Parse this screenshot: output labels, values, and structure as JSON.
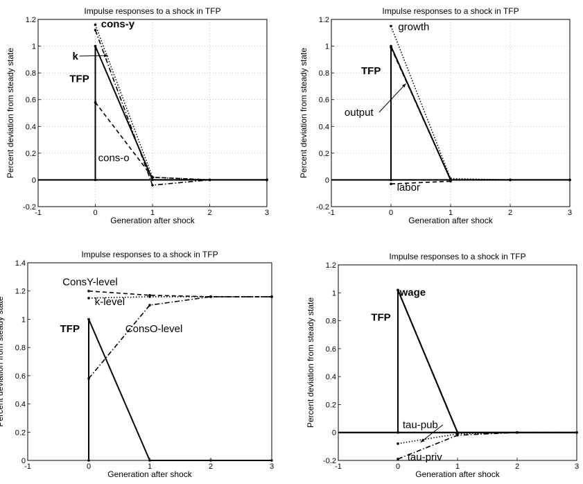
{
  "chart_data": [
    {
      "type": "line",
      "title": "Impulse responses to a shock in TFP",
      "xlabel": "Generation after shock",
      "ylabel": "Percent deviation from steady state",
      "xlim": [
        -1,
        3
      ],
      "ylim": [
        -0.2,
        1.2
      ],
      "xticks": [
        "-1",
        "0",
        "1",
        "2",
        "3"
      ],
      "yticks": [
        "-0.2",
        "0",
        "0.2",
        "0.4",
        "0.6",
        "0.8",
        "1",
        "1.2"
      ],
      "grid": true,
      "series": [
        {
          "name": "TFP",
          "style": "solid",
          "x": [
            0,
            0,
            1,
            2,
            3
          ],
          "y": [
            0,
            1,
            0,
            0,
            0
          ]
        },
        {
          "name": "cons-y",
          "style": "dotted",
          "x": [
            0,
            1,
            2,
            3
          ],
          "y": [
            1.16,
            0.02,
            0,
            0
          ]
        },
        {
          "name": "k",
          "style": "dashdot",
          "x": [
            0,
            1,
            2,
            3
          ],
          "y": [
            1.12,
            -0.04,
            0,
            0
          ]
        },
        {
          "name": "cons-o",
          "style": "dashed",
          "x": [
            0,
            1,
            2,
            3
          ],
          "y": [
            0.58,
            0.02,
            0,
            0
          ]
        }
      ],
      "annotations": [
        {
          "text": "cons-y",
          "x": 0.1,
          "y": 1.14,
          "bold": true
        },
        {
          "text": "k",
          "x": -0.4,
          "y": 0.9,
          "bold": true,
          "arrow_to": [
            0.22,
            0.93
          ]
        },
        {
          "text": "TFP",
          "x": -0.45,
          "y": 0.73,
          "bold": true
        },
        {
          "text": "cons-o",
          "x": 0.05,
          "y": 0.14,
          "bold": false
        }
      ]
    },
    {
      "type": "line",
      "title": "Impulse responses to a shock in TFP",
      "xlabel": "Generation after shock",
      "ylabel": "Percent deviation from steady state",
      "xlim": [
        -1,
        3
      ],
      "ylim": [
        -0.2,
        1.2
      ],
      "xticks": [
        "-1",
        "0",
        "1",
        "2",
        "3"
      ],
      "yticks": [
        "-0.2",
        "0",
        "0.2",
        "0.4",
        "0.6",
        "0.8",
        "1",
        "1.2"
      ],
      "grid": true,
      "series": [
        {
          "name": "TFP",
          "style": "solid",
          "x": [
            0,
            0,
            1,
            2,
            3
          ],
          "y": [
            0,
            1,
            0,
            0,
            0
          ]
        },
        {
          "name": "growth",
          "style": "dotted",
          "x": [
            0,
            1,
            2,
            3
          ],
          "y": [
            1.15,
            0.01,
            0,
            0
          ]
        },
        {
          "name": "output",
          "style": "dashed",
          "x": [
            0,
            1,
            2,
            3
          ],
          "y": [
            0.99,
            0,
            0,
            0
          ]
        },
        {
          "name": "labor",
          "style": "dashed",
          "x": [
            0,
            1
          ],
          "y": [
            -0.03,
            -0.01
          ]
        }
      ],
      "annotations": [
        {
          "text": "growth",
          "x": 0.12,
          "y": 1.12,
          "bold": false
        },
        {
          "text": "TFP",
          "x": -0.5,
          "y": 0.79,
          "bold": true
        },
        {
          "text": "output",
          "x": -0.78,
          "y": 0.48,
          "bold": false,
          "arrow_to": [
            0.25,
            0.72
          ]
        },
        {
          "text": "labor",
          "x": 0.1,
          "y": -0.08,
          "bold": false
        }
      ]
    },
    {
      "type": "line",
      "title": "Impulse responses to a shock in TFP",
      "xlabel": "Generation after shock",
      "ylabel": "Percent deviation from steady state",
      "xlim": [
        -1,
        3
      ],
      "ylim": [
        0,
        1.4
      ],
      "xticks": [
        "-1",
        "0",
        "1",
        "2",
        "3"
      ],
      "yticks": [
        "0",
        "0.2",
        "0.4",
        "0.6",
        "0.8",
        "1",
        "1.2",
        "1.4"
      ],
      "grid": false,
      "series": [
        {
          "name": "TFP",
          "style": "solid",
          "x": [
            0,
            0,
            1,
            2,
            3
          ],
          "y": [
            0,
            1,
            0,
            0,
            0
          ]
        },
        {
          "name": "ConsY-level",
          "style": "dashed",
          "x": [
            0,
            1,
            2,
            3
          ],
          "y": [
            1.2,
            1.17,
            1.16,
            1.16
          ]
        },
        {
          "name": "k-level",
          "style": "dotted",
          "x": [
            0,
            1,
            2,
            3
          ],
          "y": [
            1.15,
            1.16,
            1.16,
            1.16
          ]
        },
        {
          "name": "ConsO-level",
          "style": "dashdot",
          "x": [
            0,
            1,
            2,
            3
          ],
          "y": [
            0.58,
            1.1,
            1.16,
            1.16
          ]
        }
      ],
      "annotations": [
        {
          "text": "ConsY-level",
          "x": -0.43,
          "y": 1.24,
          "bold": false
        },
        {
          "text": "k-level",
          "x": 0.1,
          "y": 1.1,
          "bold": false
        },
        {
          "text": "TFP",
          "x": -0.47,
          "y": 0.91,
          "bold": true
        },
        {
          "text": "ConsO-level",
          "x": 0.6,
          "y": 0.91,
          "bold": false
        }
      ]
    },
    {
      "type": "line",
      "title": "Impulse responses to a shock in TFP",
      "xlabel": "Generation after shock",
      "ylabel": "Percent deviation from steady state",
      "xlim": [
        -1,
        3
      ],
      "ylim": [
        -0.2,
        1.2
      ],
      "xticks": [
        "-1",
        "0",
        "1",
        "2",
        "3"
      ],
      "yticks": [
        "-0.2",
        "0",
        "0.2",
        "0.4",
        "0.6",
        "0.8",
        "1",
        "1.2"
      ],
      "grid": false,
      "series": [
        {
          "name": "TFP",
          "style": "solid",
          "x": [
            0,
            0,
            1,
            2,
            3
          ],
          "y": [
            0,
            1.02,
            0,
            0,
            0
          ]
        },
        {
          "name": "wage",
          "style": "solid",
          "x": [
            0,
            1
          ],
          "y": [
            1.02,
            0
          ]
        },
        {
          "name": "tau-pub",
          "style": "dotted",
          "x": [
            0,
            1,
            2,
            3
          ],
          "y": [
            -0.08,
            -0.01,
            0,
            0
          ]
        },
        {
          "name": "tau-priv",
          "style": "dashdot",
          "x": [
            0,
            1,
            2,
            3
          ],
          "y": [
            -0.19,
            -0.02,
            0,
            0
          ]
        }
      ],
      "annotations": [
        {
          "text": "wage",
          "x": 0.03,
          "y": 0.98,
          "bold": true
        },
        {
          "text": "TFP",
          "x": -0.45,
          "y": 0.8,
          "bold": true
        },
        {
          "text": "tau-pub",
          "x": 0.08,
          "y": 0.03,
          "bold": false,
          "arrow_to": [
            0.38,
            -0.07
          ]
        },
        {
          "text": "tau-priv",
          "x": 0.16,
          "y": -0.2,
          "bold": false
        }
      ]
    }
  ]
}
